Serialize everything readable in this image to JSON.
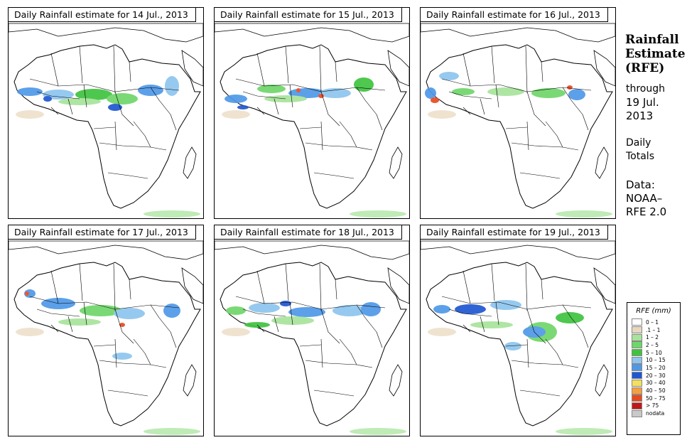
{
  "panels": [
    {
      "title": "Daily Rainfall estimate for  14 Jul., 2013"
    },
    {
      "title": "Daily Rainfall estimate for  15 Jul., 2013"
    },
    {
      "title": "Daily Rainfall estimate for  16 Jul., 2013"
    },
    {
      "title": "Daily Rainfall estimate for  17 Jul., 2013"
    },
    {
      "title": "Daily Rainfall estimate for  18 Jul., 2013"
    },
    {
      "title": "Daily Rainfall estimate for  19 Jul., 2013"
    }
  ],
  "sidebar": {
    "title_line1": "Rainfall",
    "title_line2": "Estimate",
    "title_line3": "(RFE)",
    "through": "through",
    "through_date_line1": "19 Jul.",
    "through_date_line2": "2013",
    "totals_line1": "Daily",
    "totals_line2": "Totals",
    "data_label": "Data:",
    "data_source_line1": "NOAA–",
    "data_source_line2": "RFE 2.0"
  },
  "legend": {
    "title": "RFE (mm)",
    "items": [
      {
        "label": "0 – 1",
        "color": "#ffffff"
      },
      {
        "label": ".1 – 1",
        "color": "#e8d8bf"
      },
      {
        "label": "1 – 2",
        "color": "#a8e39c"
      },
      {
        "label": "2 – 5",
        "color": "#6fd66a"
      },
      {
        "label": "5 – 10",
        "color": "#3fc33f"
      },
      {
        "label": "10 – 15",
        "color": "#8ec5ee"
      },
      {
        "label": "15 – 20",
        "color": "#4f98e8"
      },
      {
        "label": "20 – 30",
        "color": "#1f57d1"
      },
      {
        "label": "30 – 40",
        "color": "#f4df5e"
      },
      {
        "label": "40 – 50",
        "color": "#f4a040"
      },
      {
        "label": "50 – 75",
        "color": "#e84a20"
      },
      {
        "label": "> 75",
        "color": "#c01818"
      },
      {
        "label": "nodata",
        "color": "#c9c9c9"
      }
    ]
  }
}
